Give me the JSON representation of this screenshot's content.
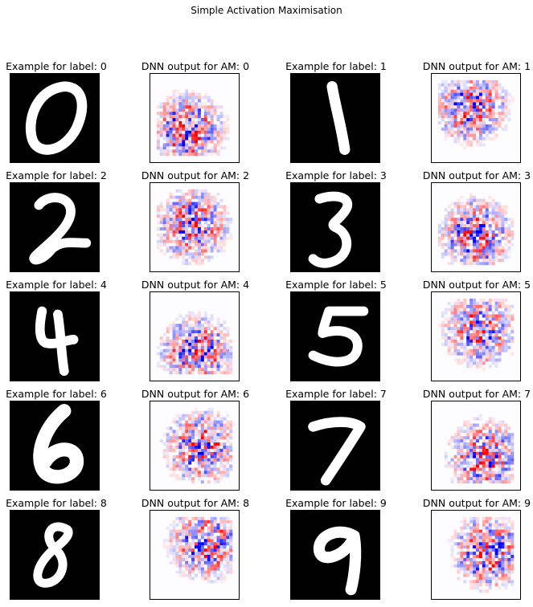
{
  "figure": {
    "title": "Simple Activation Maximisation"
  },
  "chart_data": {
    "type": "image-grid",
    "rows": 5,
    "cols": 4,
    "panels": [
      {
        "title": "Example for label: 0",
        "kind": "digit",
        "label": 0
      },
      {
        "title": "DNN output for AM: 0",
        "kind": "am",
        "label": 0
      },
      {
        "title": "Example for label: 1",
        "kind": "digit",
        "label": 1
      },
      {
        "title": "DNN output for AM: 1",
        "kind": "am",
        "label": 1
      },
      {
        "title": "Example for label: 2",
        "kind": "digit",
        "label": 2
      },
      {
        "title": "DNN output for AM: 2",
        "kind": "am",
        "label": 2
      },
      {
        "title": "Example for label: 3",
        "kind": "digit",
        "label": 3
      },
      {
        "title": "DNN output for AM: 3",
        "kind": "am",
        "label": 3
      },
      {
        "title": "Example for label: 4",
        "kind": "digit",
        "label": 4
      },
      {
        "title": "DNN output for AM: 4",
        "kind": "am",
        "label": 4
      },
      {
        "title": "Example for label: 5",
        "kind": "digit",
        "label": 5
      },
      {
        "title": "DNN output for AM: 5",
        "kind": "am",
        "label": 5
      },
      {
        "title": "Example for label: 6",
        "kind": "digit",
        "label": 6
      },
      {
        "title": "DNN output for AM: 6",
        "kind": "am",
        "label": 6
      },
      {
        "title": "Example for label: 7",
        "kind": "digit",
        "label": 7
      },
      {
        "title": "DNN output for AM: 7",
        "kind": "am",
        "label": 7
      },
      {
        "title": "Example for label: 8",
        "kind": "digit",
        "label": 8
      },
      {
        "title": "DNN output for AM: 8",
        "kind": "am",
        "label": 8
      },
      {
        "title": "Example for label: 9",
        "kind": "digit",
        "label": 9
      },
      {
        "title": "DNN output for AM: 9",
        "kind": "am",
        "label": 9
      }
    ],
    "colormaps": {
      "digit": "gray",
      "am": "bwr"
    },
    "colors": {
      "positive": "#ff0000",
      "negative": "#0000ff",
      "neutral": "#ffffff",
      "digit_ink": "#ffffff",
      "digit_background": "#000000"
    }
  }
}
